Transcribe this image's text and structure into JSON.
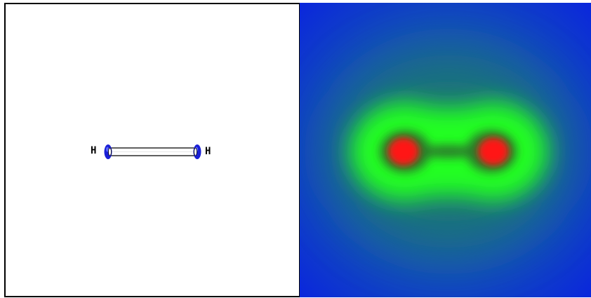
{
  "structure_view": {
    "atoms": [
      {
        "symbol": "H",
        "label": "H"
      },
      {
        "symbol": "H",
        "label": "H"
      }
    ],
    "bond_order": 1,
    "colors": {
      "atom": "#1a1fd6",
      "atom_highlight": "#5a66ff",
      "bond_fill": "#ffffff",
      "bond_stroke": "#000000",
      "label": "#000000"
    }
  },
  "density_view": {
    "colors": {
      "background": "#0a27dc",
      "outer": "#1a7a70",
      "mid": "#22ff22",
      "inner": "#2a7a2a",
      "core": "#ff1414"
    }
  }
}
